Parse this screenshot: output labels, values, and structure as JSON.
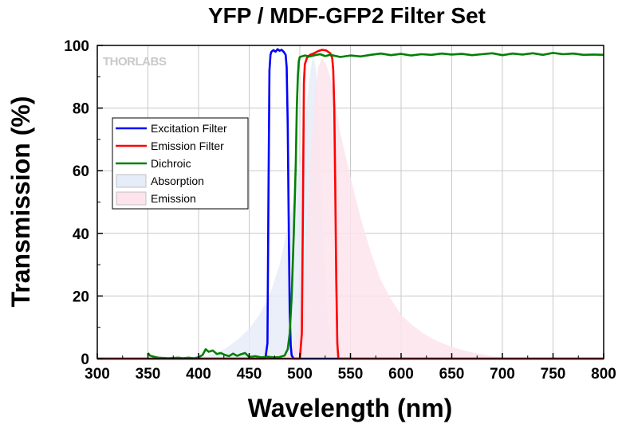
{
  "chart_data": {
    "type": "line",
    "title": "YFP / MDF-GFP2 Filter Set",
    "xlabel": "Wavelength (nm)",
    "ylabel": "Transmission (%)",
    "xlim": [
      300,
      800
    ],
    "ylim": [
      0,
      100
    ],
    "xticks": [
      300,
      350,
      400,
      450,
      500,
      550,
      600,
      650,
      700,
      750,
      800
    ],
    "yticks": [
      0,
      20,
      40,
      60,
      80,
      100
    ],
    "grid": true,
    "legend_position": "upper-left",
    "watermark": "THORLABS",
    "series": [
      {
        "name": "Excitation Filter",
        "kind": "line",
        "color": "#0000ff",
        "x": [
          300,
          466,
          468,
          469,
          470,
          471,
          472,
          474,
          476,
          478,
          480,
          482,
          484,
          486,
          487,
          488,
          489,
          490,
          491,
          492,
          494,
          800
        ],
        "y": [
          0,
          0,
          5,
          50,
          92,
          97,
          98,
          98.5,
          98,
          98.8,
          98.3,
          98.6,
          98,
          97,
          93,
          75,
          45,
          15,
          4,
          1,
          0,
          0
        ]
      },
      {
        "name": "Emission Filter",
        "kind": "line",
        "color": "#ff0000",
        "x": [
          300,
          500,
          502,
          503,
          504,
          505,
          507,
          510,
          514,
          518,
          522,
          526,
          530,
          532,
          533,
          534,
          535,
          536,
          537,
          538,
          800
        ],
        "y": [
          0,
          0,
          8,
          45,
          88,
          94,
          96,
          97,
          97.5,
          98.2,
          98.6,
          98.4,
          97.5,
          96,
          92,
          80,
          55,
          25,
          5,
          0,
          0
        ]
      },
      {
        "name": "Dichroic",
        "kind": "line",
        "color": "#008000",
        "x": [
          350,
          352,
          356,
          360,
          365,
          370,
          375,
          380,
          385,
          390,
          395,
          400,
          404,
          407,
          410,
          414,
          418,
          422,
          426,
          430,
          434,
          438,
          442,
          446,
          450,
          456,
          462,
          468,
          474,
          480,
          485,
          488,
          490,
          492,
          494,
          496,
          497,
          498,
          499,
          500,
          502,
          505,
          510,
          515,
          520,
          525,
          530,
          540,
          550,
          560,
          570,
          580,
          590,
          600,
          610,
          620,
          630,
          640,
          650,
          660,
          670,
          680,
          690,
          700,
          710,
          720,
          730,
          740,
          750,
          760,
          770,
          780,
          790,
          800
        ],
        "y": [
          1.8,
          1,
          0.6,
          0.3,
          0.2,
          0.1,
          0.2,
          0.3,
          0.1,
          0.3,
          0.1,
          0.4,
          1.2,
          3,
          2.2,
          2.6,
          1.5,
          1.8,
          1.2,
          0.8,
          1.6,
          0.9,
          1.4,
          1.8,
          0.5,
          0.8,
          0.4,
          0.6,
          0.4,
          0.5,
          1,
          3,
          8,
          20,
          40,
          62,
          80,
          90,
          95,
          96.3,
          96.5,
          96.8,
          96.5,
          96.9,
          97.2,
          96.6,
          97,
          96.3,
          96.8,
          96.5,
          97,
          97.4,
          96.9,
          97.3,
          96.8,
          97.2,
          97,
          97.4,
          97.1,
          97.3,
          96.9,
          97.2,
          97.5,
          96.9,
          97.4,
          97.1,
          97.5,
          97,
          97.6,
          97.2,
          97.4,
          97,
          97.1,
          97
        ]
      },
      {
        "name": "Absorption",
        "kind": "area",
        "color": "#e6ecf8",
        "x": [
          400,
          410,
          420,
          430,
          440,
          450,
          460,
          470,
          480,
          490,
          495,
          500,
          505,
          508,
          510,
          512,
          514,
          516,
          518,
          520,
          522,
          524,
          526,
          528,
          530,
          533,
          536,
          540,
          545
        ],
        "y": [
          0.5,
          1,
          2,
          4,
          6.5,
          9.5,
          14,
          20,
          30,
          45,
          52,
          62,
          75,
          85,
          91,
          95,
          96,
          92,
          82,
          66,
          50,
          35,
          22,
          12,
          6,
          2.5,
          1,
          0.3,
          0
        ]
      },
      {
        "name": "Emission",
        "kind": "area",
        "color": "#fde4ec",
        "x": [
          480,
          490,
          495,
          500,
          505,
          510,
          515,
          518,
          522,
          526,
          530,
          535,
          540,
          550,
          560,
          570,
          580,
          590,
          600,
          610,
          620,
          630,
          640,
          650,
          660,
          670,
          680,
          690,
          700,
          710
        ],
        "y": [
          0,
          2,
          5,
          12,
          30,
          60,
          85,
          93,
          96,
          94,
          90,
          82,
          72,
          58,
          45,
          34,
          25,
          19,
          14,
          11,
          8.5,
          6.5,
          5,
          3.8,
          2.8,
          2,
          1.4,
          0.8,
          0.3,
          0
        ]
      }
    ]
  }
}
